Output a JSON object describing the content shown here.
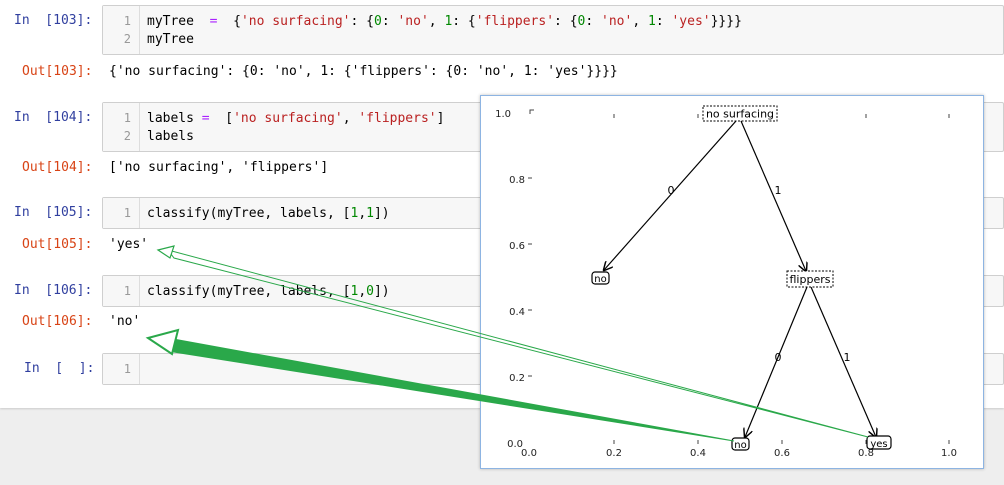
{
  "notebook": {
    "cells": [
      {
        "in_prompt": "In  [103]:",
        "lines": [
          {
            "num": "1",
            "parts": [
              {
                "t": "myTree  ",
                "c": ""
              },
              {
                "t": "=",
                "c": "o"
              },
              {
                "t": "  {",
                "c": ""
              },
              {
                "t": "'no surfacing'",
                "c": "s"
              },
              {
                "t": ": {",
                "c": ""
              },
              {
                "t": "0",
                "c": "n"
              },
              {
                "t": ": ",
                "c": ""
              },
              {
                "t": "'no'",
                "c": "s"
              },
              {
                "t": ", ",
                "c": ""
              },
              {
                "t": "1",
                "c": "n"
              },
              {
                "t": ": {",
                "c": ""
              },
              {
                "t": "'flippers'",
                "c": "s"
              },
              {
                "t": ": {",
                "c": ""
              },
              {
                "t": "0",
                "c": "n"
              },
              {
                "t": ": ",
                "c": ""
              },
              {
                "t": "'no'",
                "c": "s"
              },
              {
                "t": ", ",
                "c": ""
              },
              {
                "t": "1",
                "c": "n"
              },
              {
                "t": ": ",
                "c": ""
              },
              {
                "t": "'yes'",
                "c": "s"
              },
              {
                "t": "}}}}",
                "c": ""
              }
            ]
          },
          {
            "num": "2",
            "parts": [
              {
                "t": "myTree",
                "c": ""
              }
            ]
          }
        ],
        "out_prompt": "Out[103]:",
        "output": "{'no surfacing': {0: 'no', 1: {'flippers': {0: 'no', 1: 'yes'}}}}"
      },
      {
        "in_prompt": "In  [104]:",
        "lines": [
          {
            "num": "1",
            "parts": [
              {
                "t": "labels ",
                "c": ""
              },
              {
                "t": "=",
                "c": "o"
              },
              {
                "t": "  [",
                "c": ""
              },
              {
                "t": "'no surfacing'",
                "c": "s"
              },
              {
                "t": ", ",
                "c": ""
              },
              {
                "t": "'flippers'",
                "c": "s"
              },
              {
                "t": "]",
                "c": ""
              }
            ]
          },
          {
            "num": "2",
            "parts": [
              {
                "t": "labels",
                "c": ""
              }
            ]
          }
        ],
        "out_prompt": "Out[104]:",
        "output": "['no surfacing', 'flippers']"
      },
      {
        "in_prompt": "In  [105]:",
        "lines": [
          {
            "num": "1",
            "parts": [
              {
                "t": "classify(myTree, labels, [",
                "c": ""
              },
              {
                "t": "1",
                "c": "n"
              },
              {
                "t": ",",
                "c": ""
              },
              {
                "t": "1",
                "c": "n"
              },
              {
                "t": "])",
                "c": ""
              }
            ]
          }
        ],
        "out_prompt": "Out[105]:",
        "output": "'yes'"
      },
      {
        "in_prompt": "In  [106]:",
        "lines": [
          {
            "num": "1",
            "parts": [
              {
                "t": "classify(myTree, labels, [",
                "c": ""
              },
              {
                "t": "1",
                "c": "n"
              },
              {
                "t": ",",
                "c": ""
              },
              {
                "t": "0",
                "c": "n"
              },
              {
                "t": "])",
                "c": ""
              }
            ]
          }
        ],
        "out_prompt": "Out[106]:",
        "output": "'no'"
      },
      {
        "in_prompt": "In  [  ]:",
        "lines": [
          {
            "num": "1",
            "parts": []
          }
        ]
      }
    ]
  },
  "tree_plot": {
    "y_ticks": [
      "1.0",
      "0.8",
      "0.6",
      "0.4",
      "0.2",
      "0.0"
    ],
    "x_ticks": [
      "0.0",
      "0.2",
      "0.4",
      "0.6",
      "0.8",
      "1.0"
    ],
    "nodes": {
      "root": "no surfacing",
      "left_leaf": "no",
      "mid": "flippers",
      "mid_left_leaf": "no",
      "mid_right_leaf": "yes"
    },
    "edges": {
      "root_left": "0",
      "root_right": "1",
      "mid_left": "0",
      "mid_right": "1"
    }
  },
  "annotation": {
    "arrow_color": "#2aa84a"
  }
}
